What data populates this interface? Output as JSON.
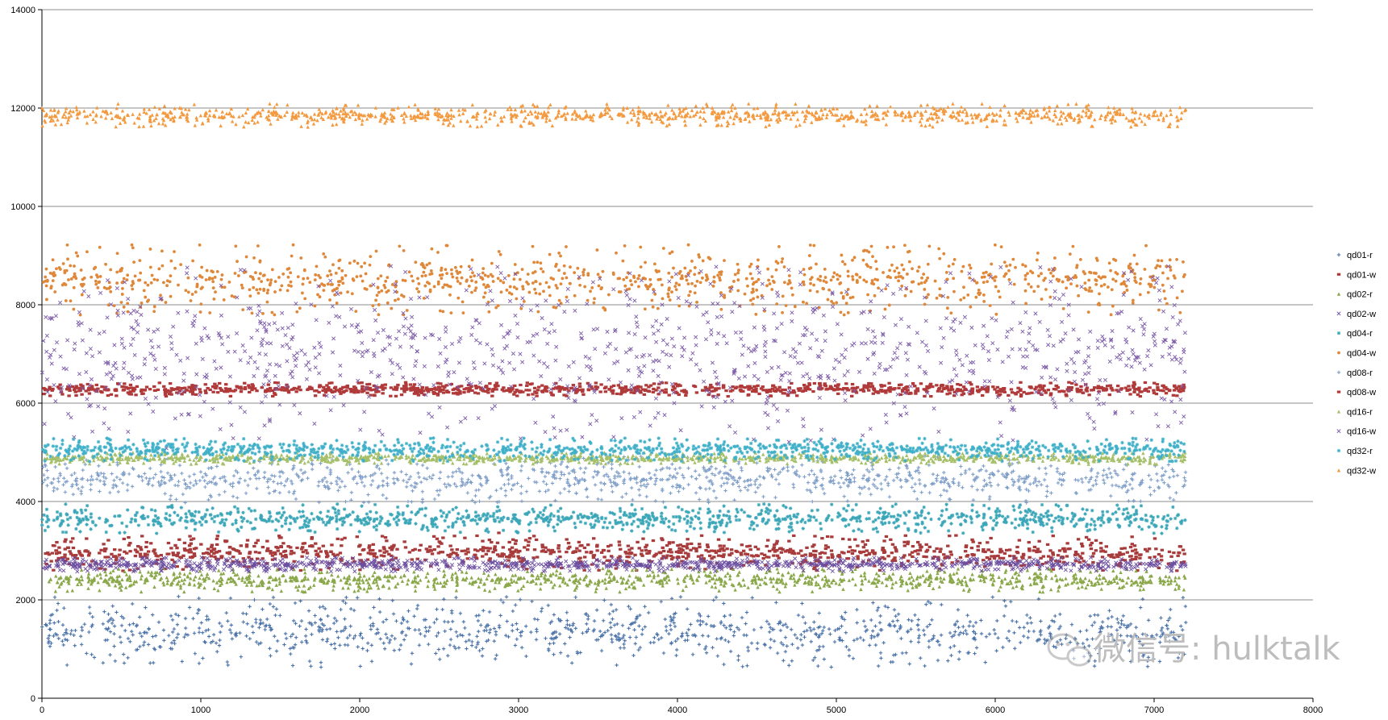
{
  "chart_data": {
    "type": "scatter",
    "title": "",
    "xlabel": "",
    "ylabel": "",
    "xlim": [
      0,
      8000
    ],
    "ylim": [
      0,
      14000
    ],
    "x_ticks": [
      "0",
      "1000",
      "2000",
      "3000",
      "4000",
      "5000",
      "6000",
      "7000",
      "8000"
    ],
    "y_ticks": [
      "0",
      "2000",
      "4000",
      "6000",
      "8000",
      "10000",
      "12000",
      "14000"
    ],
    "grid": "horizontal major gridlines",
    "legend_position": "right",
    "x_max_sample": 7200,
    "series": [
      {
        "name": "qd01-r",
        "color": "#4a72a8",
        "marker": "plus",
        "center": 1350,
        "spread": 600
      },
      {
        "name": "qd01-w",
        "color": "#a83b3b",
        "marker": "square",
        "center": 2950,
        "spread": 300
      },
      {
        "name": "qd02-r",
        "color": "#8aa84a",
        "marker": "triangle",
        "center": 2400,
        "spread": 200
      },
      {
        "name": "qd02-w",
        "color": "#6b4ea0",
        "marker": "cross",
        "center": 2720,
        "spread": 120
      },
      {
        "name": "qd04-r",
        "color": "#3aa6b8",
        "marker": "star",
        "center": 3650,
        "spread": 250
      },
      {
        "name": "qd04-w",
        "color": "#e0883a",
        "marker": "circle",
        "center": 8500,
        "spread": 600
      },
      {
        "name": "qd08-r",
        "color": "#7f9ec8",
        "marker": "plus",
        "center": 4450,
        "spread": 400
      },
      {
        "name": "qd08-w",
        "color": "#b03a3a",
        "marker": "square",
        "center": 6280,
        "spread": 120
      },
      {
        "name": "qd16-r",
        "color": "#a6c06a",
        "marker": "triangle",
        "center": 4880,
        "spread": 100
      },
      {
        "name": "qd16-w",
        "color": "#7b5aa8",
        "marker": "cross",
        "center": 7000,
        "spread": 1500
      },
      {
        "name": "qd32-r",
        "color": "#40b0c8",
        "marker": "star",
        "center": 5050,
        "spread": 200
      },
      {
        "name": "qd32-w",
        "color": "#f39a40",
        "marker": "triangle",
        "center": 11850,
        "spread": 200
      }
    ]
  },
  "watermark": {
    "icon": "wechat-icon",
    "text": "微信号: hulktalk"
  }
}
